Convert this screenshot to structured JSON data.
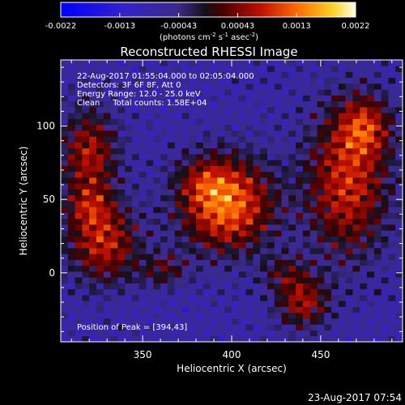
{
  "chart_data": {
    "type": "heatmap",
    "title": "Reconstructed RHESSI Image",
    "xlabel": "Heliocentric X (arcsec)",
    "ylabel": "Heliocentric Y (arcsec)",
    "xlim": [
      304,
      496
    ],
    "ylim": [
      -47,
      145
    ],
    "xticks": [
      350,
      400,
      450
    ],
    "yticks": [
      0,
      50,
      100
    ],
    "colorbar": {
      "range": [
        -0.0022,
        0.0022
      ],
      "ticks": [
        "-0.0022",
        "-0.0013",
        "-0.00043",
        "0.00043",
        "0.0013",
        "0.0022"
      ],
      "unit_main": "(photons cm",
      "unit_sup1": "-2",
      "unit_mid": " s",
      "unit_sup2": "-1",
      "unit_mid2": " asec",
      "unit_sup3": "-2",
      "unit_end": ")"
    },
    "annotations": [
      "22-Aug-2017 01:55:04.000 to 02:05:04.000",
      "Detectors: 3F 6F 8F, Att 0",
      "Energy Range: 12.0 - 25.0 keV",
      "Clean     Total counts: 1.58E+04"
    ],
    "peak_label": "Position of Peak = [394,43]",
    "peak": [
      394,
      43
    ],
    "sources": [
      {
        "x": 397,
        "y": 47,
        "sx": 18,
        "sy": 22,
        "amp": 0.0021
      },
      {
        "x": 385,
        "y": 62,
        "sx": 10,
        "sy": 10,
        "amp": 0.0006
      },
      {
        "x": 320,
        "y": 80,
        "sx": 11,
        "sy": 22,
        "amp": 0.0014
      },
      {
        "x": 328,
        "y": 20,
        "sx": 14,
        "sy": 18,
        "amp": 0.0015
      },
      {
        "x": 320,
        "y": 45,
        "sx": 9,
        "sy": 10,
        "amp": 0.0008
      },
      {
        "x": 465,
        "y": 62,
        "sx": 16,
        "sy": 35,
        "amp": 0.0016
      },
      {
        "x": 475,
        "y": 100,
        "sx": 10,
        "sy": 14,
        "amp": 0.0012
      },
      {
        "x": 440,
        "y": -20,
        "sx": 10,
        "sy": 12,
        "amp": 0.0013
      },
      {
        "x": 430,
        "y": 0,
        "sx": 9,
        "sy": 9,
        "amp": 0.0007
      },
      {
        "x": 362,
        "y": 2,
        "sx": 9,
        "sy": 8,
        "amp": 0.0008
      }
    ]
  },
  "footer": {
    "timestamp": "23-Aug-2017 07:54"
  }
}
